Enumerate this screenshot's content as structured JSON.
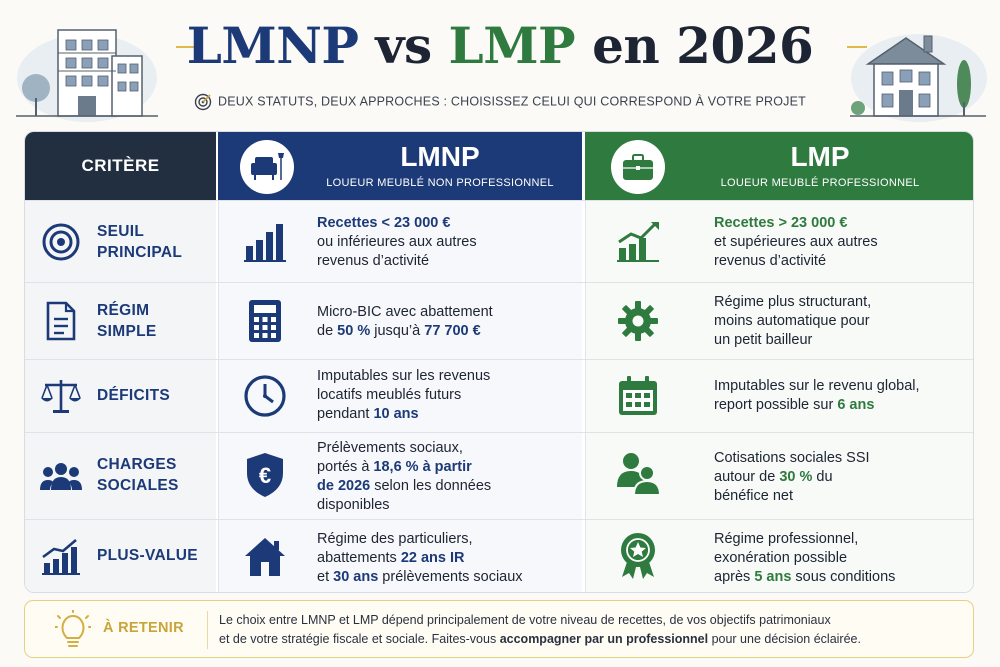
{
  "header": {
    "title_lmnp": "LMNP",
    "title_vs": "vs",
    "title_lmp": "LMP",
    "title_suffix": "en 2026",
    "subtitle": "DEUX STATUTS, DEUX APPROCHES : CHOISISSEZ CELUI QUI CORRESPOND À VOTRE PROJET"
  },
  "columns": {
    "criteria": "CRITÈRE",
    "lmnp": {
      "title": "LMNP",
      "subtitle": "LOUEUR MEUBLÉ NON PROFESSIONNEL",
      "icon": "armchair-icon"
    },
    "lmp": {
      "title": "LMP",
      "subtitle": "LOUEUR MEUBLÉ PROFESSIONNEL",
      "icon": "briefcase-icon"
    }
  },
  "rows": [
    {
      "criterion": {
        "line1": "SEUIL",
        "line2": "PRINCIPAL",
        "icon": "target-icon"
      },
      "lmnp": {
        "icon": "bar-chart-icon",
        "highlight": "Recettes < 23 000 €",
        "rest1": "ou inférieures aux autres",
        "rest2": "revenus d’activité"
      },
      "lmp": {
        "icon": "growth-chart-icon",
        "highlight": "Recettes > 23 000 €",
        "rest1": "et supérieures aux autres",
        "rest2": "revenus d’activité"
      }
    },
    {
      "criterion": {
        "line1": "RÉGIM",
        "line2": "SIMPLE",
        "icon": "document-icon"
      },
      "lmnp": {
        "icon": "calculator-icon",
        "line1": "Micro-BIC avec abattement",
        "line2_pre": "de ",
        "line2_hl1": "50 %",
        "line2_mid": " jusqu’à ",
        "line2_hl2": "77 700 €"
      },
      "lmp": {
        "icon": "gear-icon",
        "line1": "Régime plus structurant,",
        "line2": "moins automatique pour",
        "line3": "un petit bailleur"
      }
    },
    {
      "criterion": {
        "line1": "DÉFICITS",
        "icon": "scales-icon"
      },
      "lmnp": {
        "icon": "clock-icon",
        "line1": "Imputables sur les revenus",
        "line2": "locatifs meublés futurs",
        "line3_pre": "pendant ",
        "line3_hl": "10 ans"
      },
      "lmp": {
        "icon": "calendar-icon",
        "line1": "Imputables sur le revenu global,",
        "line2_pre": "report possible sur ",
        "line2_hl": "6 ans"
      }
    },
    {
      "criterion": {
        "line1": "CHARGES",
        "line2": "SOCIALES",
        "icon": "people-icon"
      },
      "lmnp": {
        "icon": "euro-shield-icon",
        "line1": "Prélèvements sociaux,",
        "line2_pre": "portés à ",
        "line2_hl": "18,6 % à partir",
        "line3_hl": "de 2026",
        "line3_post": " selon les données",
        "line4": "disponibles"
      },
      "lmp": {
        "icon": "users-icon",
        "line1": "Cotisations sociales SSI",
        "line2_pre": "autour de ",
        "line2_hl": "30 %",
        "line2_post": " du",
        "line3": "bénéfice net"
      }
    },
    {
      "criterion": {
        "line1": "PLUS-VALUE",
        "icon": "rising-chart-icon"
      },
      "lmnp": {
        "icon": "house-icon",
        "line1": "Régime des particuliers,",
        "line2_pre": "abattements ",
        "line2_hl": "22 ans IR",
        "line3_hl": "30 ans",
        "line3_post": " prélèvements sociaux",
        "line3_pre": "et "
      },
      "lmp": {
        "icon": "award-icon",
        "line1": "Régime professionnel,",
        "line2": "exonération possible",
        "line3_pre": "après ",
        "line3_hl": "5 ans",
        "line3_post": " sous conditions"
      }
    }
  ],
  "retenir": {
    "icon": "lightbulb-icon",
    "label": "À RETENIR",
    "line1": "Le choix entre LMNP et LMP dépend principalement de votre niveau de recettes, de vos objectifs patrimoniaux",
    "line2_pre": "et de votre stratégie fiscale et sociale. Faites-vous ",
    "line2_bold": "accompagner par un professionnel",
    "line2_post": " pour une décision éclairée."
  },
  "colors": {
    "navy": "#1c3a78",
    "green": "#2f7a3f",
    "dark": "#222f40",
    "gold": "#c9a43b"
  }
}
